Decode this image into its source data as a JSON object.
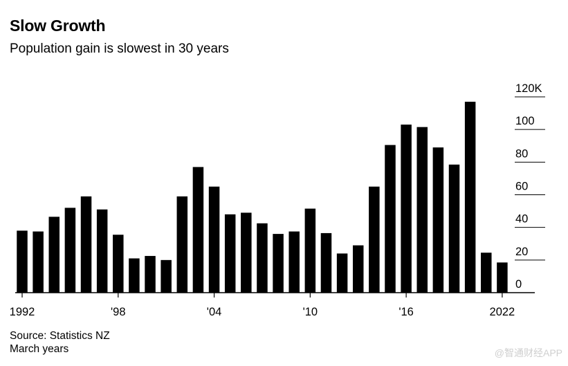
{
  "header": {
    "title": "Slow Growth",
    "subtitle": "Population gain is slowest in 30 years"
  },
  "footer": {
    "source": "Source: Statistics NZ",
    "note": "March years"
  },
  "watermark": "@智通财经APP",
  "colors": {
    "bar": "#000000",
    "grid": "#000000",
    "background": "#ffffff"
  },
  "chart_data": {
    "type": "bar",
    "title": "Slow Growth",
    "subtitle": "Population gain is slowest in 30 years",
    "x": [
      1992,
      1993,
      1994,
      1995,
      1996,
      1997,
      1998,
      1999,
      2000,
      2001,
      2002,
      2003,
      2004,
      2005,
      2006,
      2007,
      2008,
      2009,
      2010,
      2011,
      2012,
      2013,
      2014,
      2015,
      2016,
      2017,
      2018,
      2019,
      2020,
      2021,
      2022
    ],
    "values": [
      38,
      37.5,
      46.5,
      52,
      59,
      51,
      35.5,
      21,
      22.5,
      20,
      59,
      77,
      65,
      48,
      49,
      42.5,
      36,
      37.5,
      51.5,
      36.5,
      24,
      29,
      65,
      90.5,
      103,
      101.5,
      89,
      78.5,
      117,
      24.5,
      18.5
    ],
    "x_tick_labels": [
      {
        "x": 1992,
        "label": "1992"
      },
      {
        "x": 1998,
        "label": "'98"
      },
      {
        "x": 2004,
        "label": "'04"
      },
      {
        "x": 2010,
        "label": "'10"
      },
      {
        "x": 2016,
        "label": "'16"
      },
      {
        "x": 2022,
        "label": "2022"
      }
    ],
    "y_ticks": [
      {
        "value": 0,
        "label": "0"
      },
      {
        "value": 20,
        "label": "20"
      },
      {
        "value": 40,
        "label": "40"
      },
      {
        "value": 60,
        "label": "60"
      },
      {
        "value": 80,
        "label": "80"
      },
      {
        "value": 100,
        "label": "100"
      },
      {
        "value": 120,
        "label": "120K"
      }
    ],
    "ylim": [
      0,
      120
    ],
    "y_axis_position": "right",
    "grid": "short tick lines on right",
    "note": "March years"
  }
}
